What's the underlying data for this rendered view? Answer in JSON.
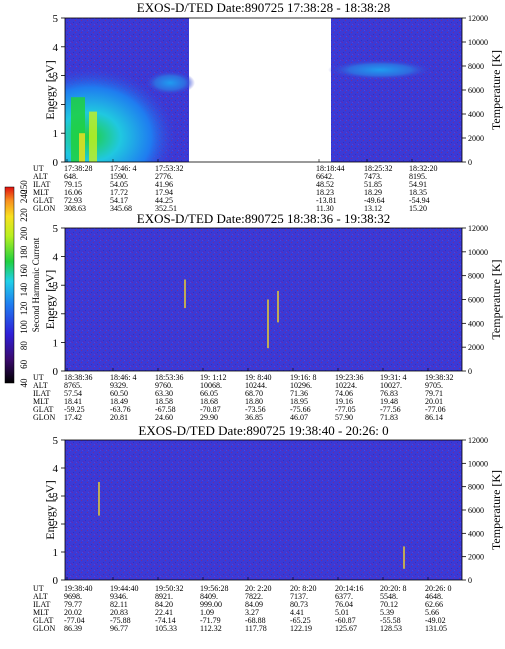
{
  "chart_data": [
    {
      "type": "heatmap",
      "title": "EXOS-D/TED   Date:890725   17:38:28 - 18:38:28",
      "ylabel": "Energy [eV]",
      "y2label": "Temperature [K]",
      "ylim": [
        0,
        5
      ],
      "y2lim": [
        0,
        12000
      ],
      "yticks": [
        0,
        1,
        2,
        3,
        4,
        5
      ],
      "y2ticks": [
        0,
        2000,
        4000,
        6000,
        8000,
        10000,
        12000
      ],
      "data_gap": [
        "17:58:00",
        "18:18:44"
      ],
      "orbit_table": {
        "row_labels": [
          "UT",
          "ALT",
          "ILAT",
          "MLT",
          "GLAT",
          "GLON"
        ],
        "columns": [
          [
            "17:38:28",
            "648.",
            "79.15",
            "16.06",
            "72.93",
            "308.63"
          ],
          [
            "17:46: 4",
            "1590.",
            "54.05",
            "17.72",
            "54.17",
            "345.68"
          ],
          [
            "17:53:32",
            "2776.",
            "41.96",
            "17.94",
            "44.25",
            "352.51"
          ],
          [
            "18:18:44",
            "6642.",
            "48.52",
            "18.23",
            "-13.81",
            "11.30"
          ],
          [
            "18:25:32",
            "7473.",
            "51.85",
            "18.29",
            "-49.64",
            "13.12"
          ],
          [
            "18:32:20",
            "8195.",
            "54.91",
            "18.35",
            "-54.94",
            "15.20"
          ]
        ]
      }
    },
    {
      "type": "heatmap",
      "title": "EXOS-D/TED   Date:890725   18:38:36 - 19:38:32",
      "ylabel": "Energy [eV]",
      "y2label": "Temperature [K]",
      "ylim": [
        0,
        5
      ],
      "y2lim": [
        0,
        12000
      ],
      "yticks": [
        0,
        1,
        2,
        3,
        4,
        5
      ],
      "y2ticks": [
        0,
        2000,
        4000,
        6000,
        8000,
        10000,
        12000
      ],
      "colorbar": {
        "label": "Second Harmonic Current",
        "ticks": [
          40,
          60,
          80,
          100,
          120,
          140,
          160,
          180,
          200,
          220,
          240,
          250
        ]
      },
      "orbit_table": {
        "row_labels": [
          "UT",
          "ALT",
          "ILAT",
          "MLT",
          "GLAT",
          "GLON"
        ],
        "columns": [
          [
            "18:38:36",
            "8765.",
            "57.54",
            "18.41",
            "-59.25",
            "17.42"
          ],
          [
            "18:46: 4",
            "9329.",
            "60.50",
            "18.49",
            "-63.76",
            "20.81"
          ],
          [
            "18:53:36",
            "9760.",
            "63.30",
            "18.58",
            "-67.58",
            "24.60"
          ],
          [
            "19: 1:12",
            "10068.",
            "66.05",
            "18.68",
            "-70.87",
            "29.90"
          ],
          [
            "19: 8:40",
            "10244.",
            "68.70",
            "18.80",
            "-73.56",
            "36.85"
          ],
          [
            "19:16: 8",
            "10296.",
            "71.36",
            "18.95",
            "-75.66",
            "46.07"
          ],
          [
            "19:23:36",
            "10224.",
            "74.06",
            "19.16",
            "-77.05",
            "57.90"
          ],
          [
            "19:31: 4",
            "10027.",
            "76.83",
            "19.48",
            "-77.56",
            "71.83"
          ],
          [
            "19:38:32",
            "9705.",
            "79.71",
            "20.01",
            "-77.06",
            "86.14"
          ]
        ]
      }
    },
    {
      "type": "heatmap",
      "title": "EXOS-D/TED   Date:890725   19:38:40 - 20:26: 0",
      "ylabel": "Energy [eV]",
      "y2label": "Temperature [K]",
      "ylim": [
        0,
        5
      ],
      "y2lim": [
        0,
        12000
      ],
      "yticks": [
        0,
        1,
        2,
        3,
        4,
        5
      ],
      "y2ticks": [
        0,
        2000,
        4000,
        6000,
        8000,
        10000,
        12000
      ],
      "orbit_table": {
        "row_labels": [
          "UT",
          "ALT",
          "ILAT",
          "MLT",
          "GLAT",
          "GLON"
        ],
        "columns": [
          [
            "19:38:40",
            "9698.",
            "79.77",
            "20.02",
            "-77.04",
            "86.39"
          ],
          [
            "19:44:40",
            "9346.",
            "82.11",
            "20.83",
            "-75.88",
            "96.77"
          ],
          [
            "19:50:32",
            "8921.",
            "84.20",
            "22.41",
            "-74.14",
            "105.33"
          ],
          [
            "19:56:28",
            "8409.",
            "999.00",
            "1.09",
            "-71.79",
            "112.32"
          ],
          [
            "20: 2:20",
            "7822.",
            "84.09",
            "3.27",
            "-68.88",
            "117.78"
          ],
          [
            "20: 8:20",
            "7137.",
            "80.73",
            "4.41",
            "-65.25",
            "122.19"
          ],
          [
            "20:14:16",
            "6377.",
            "76.04",
            "5.01",
            "-60.87",
            "125.67"
          ],
          [
            "20:20: 8",
            "5548.",
            "70.12",
            "5.39",
            "-55.58",
            "128.53"
          ],
          [
            "20:26: 0",
            "4648.",
            "62.66",
            "5.66",
            "-49.02",
            "131.05"
          ]
        ]
      }
    }
  ]
}
